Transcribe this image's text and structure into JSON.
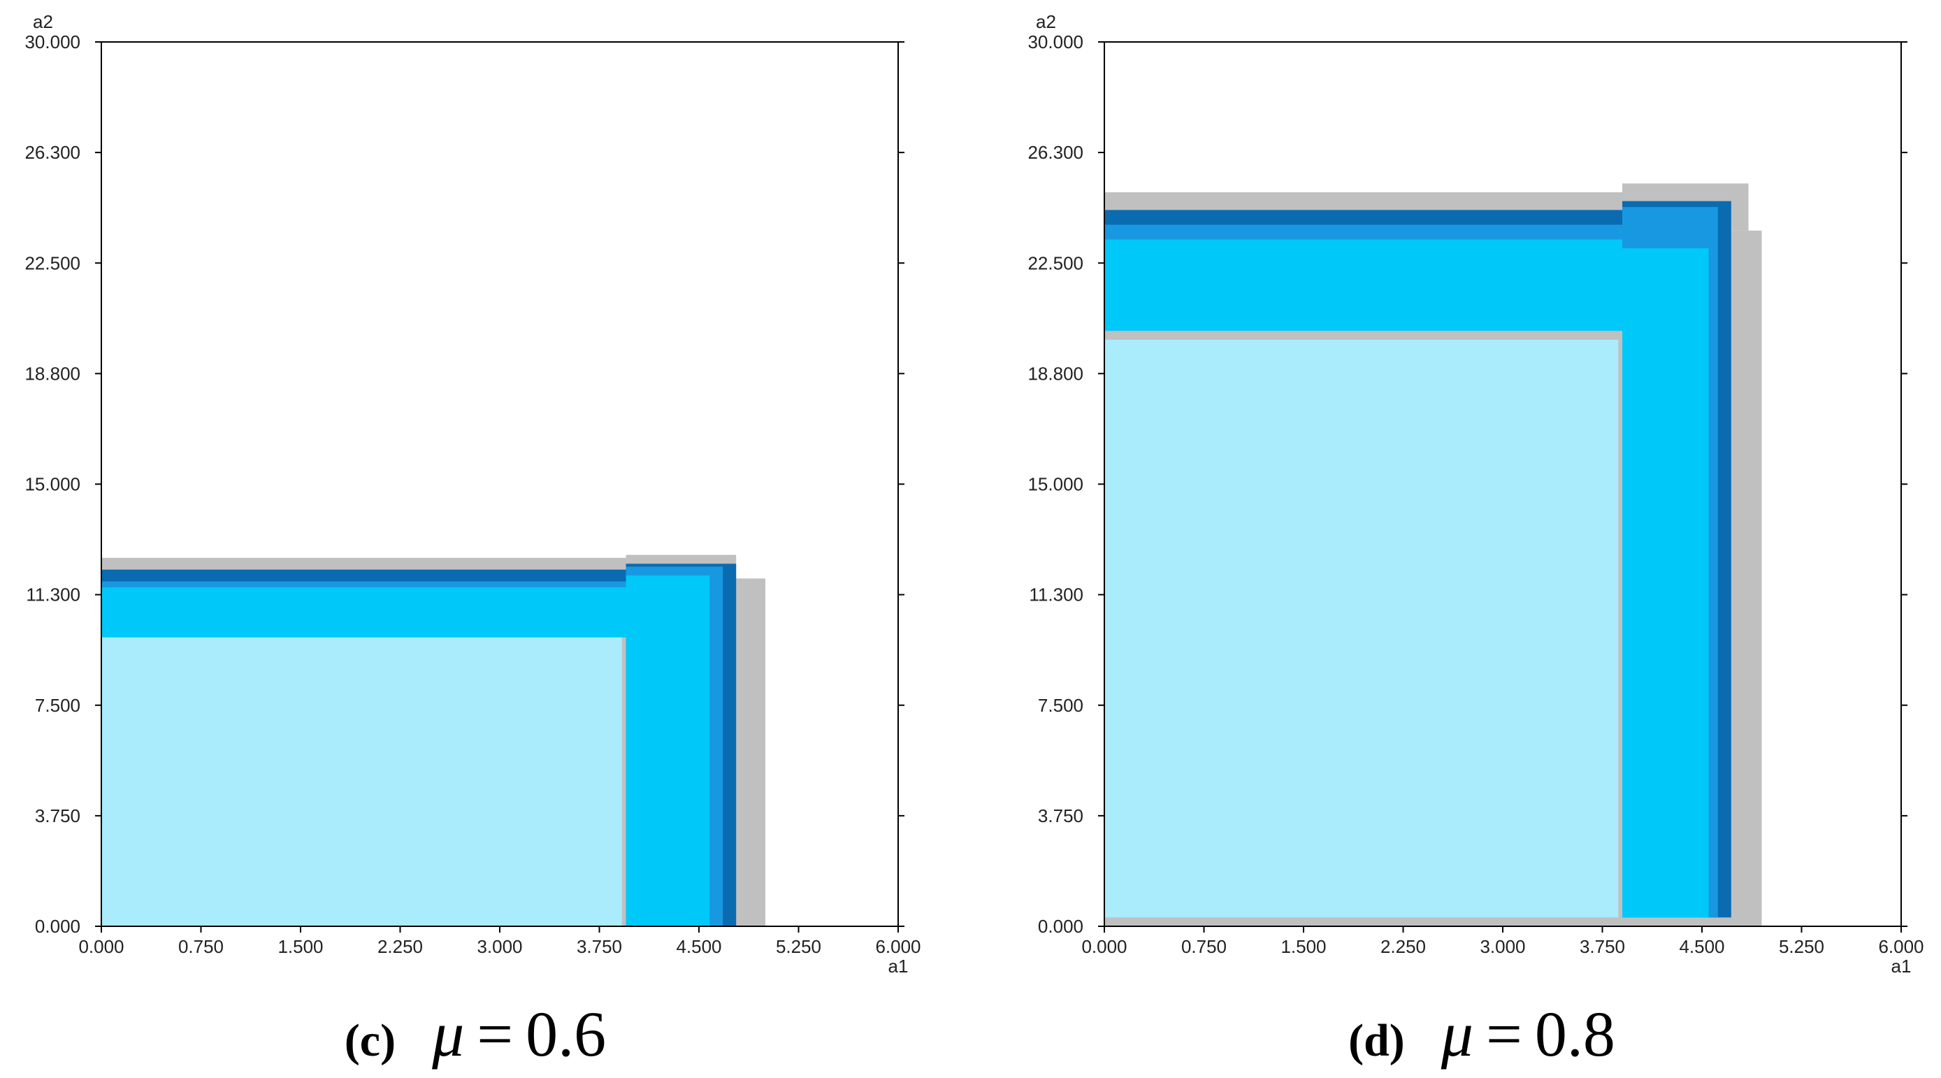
{
  "chart_data": [
    {
      "type": "heatmap",
      "panel_label": "(c)",
      "parameter_symbol": "μ",
      "equals": "=",
      "parameter_value": "0.6",
      "xlabel": "a1",
      "ylabel": "a2",
      "xlim": [
        0,
        6
      ],
      "ylim": [
        0,
        30
      ],
      "xticks": [
        "0.000",
        "0.750",
        "1.500",
        "2.250",
        "3.000",
        "3.750",
        "4.500",
        "5.250",
        "6.000"
      ],
      "yticks": [
        "0.000",
        "3.750",
        "7.500",
        "11.300",
        "15.000",
        "18.800",
        "22.500",
        "26.300",
        "30.000"
      ],
      "regions": [
        {
          "name": "gray-outer-bottom",
          "color": "#c0c0c0",
          "x": [
            0.0,
            5.0
          ],
          "y": [
            0.0,
            11.8
          ]
        },
        {
          "name": "gray-outer-top",
          "color": "#c0c0c0",
          "x": [
            0.0,
            3.95
          ],
          "y": [
            0.0,
            12.5
          ]
        },
        {
          "name": "gray-cap",
          "color": "#c0c0c0",
          "x": [
            3.95,
            4.78
          ],
          "y": [
            11.8,
            12.6
          ]
        },
        {
          "name": "dark-blue-top",
          "color": "#0a6bb0",
          "x": [
            0.0,
            3.95
          ],
          "y": [
            11.2,
            12.1
          ]
        },
        {
          "name": "mid-blue-top",
          "color": "#1898e0",
          "x": [
            0.0,
            3.95
          ],
          "y": [
            11.0,
            11.7
          ]
        },
        {
          "name": "dark-blue-right",
          "color": "#0a6bb0",
          "x": [
            3.95,
            4.78
          ],
          "y": [
            0.0,
            12.3
          ]
        },
        {
          "name": "mid-blue-right",
          "color": "#1898e0",
          "x": [
            3.95,
            4.68
          ],
          "y": [
            0.0,
            12.2
          ]
        },
        {
          "name": "cyan-top",
          "color": "#00c8f8",
          "x": [
            0.0,
            3.95
          ],
          "y": [
            9.8,
            11.5
          ]
        },
        {
          "name": "cyan-right",
          "color": "#00c8f8",
          "x": [
            3.95,
            4.58
          ],
          "y": [
            0.0,
            11.9
          ]
        },
        {
          "name": "light-blue-core",
          "color": "#aaebfc",
          "x": [
            0.0,
            3.92
          ],
          "y": [
            0.0,
            9.8
          ]
        }
      ]
    },
    {
      "type": "heatmap",
      "panel_label": "(d)",
      "parameter_symbol": "μ",
      "equals": "=",
      "parameter_value": "0.8",
      "xlabel": "a1",
      "ylabel": "a2",
      "xlim": [
        0,
        6
      ],
      "ylim": [
        0,
        30
      ],
      "xticks": [
        "0.000",
        "0.750",
        "1.500",
        "2.250",
        "3.000",
        "3.750",
        "4.500",
        "5.250",
        "6.000"
      ],
      "yticks": [
        "0.000",
        "3.750",
        "7.500",
        "11.300",
        "15.000",
        "18.800",
        "22.500",
        "26.300",
        "30.000"
      ],
      "regions": [
        {
          "name": "gray-outer-bottom",
          "color": "#c0c0c0",
          "x": [
            0.0,
            4.95
          ],
          "y": [
            0.0,
            23.6
          ]
        },
        {
          "name": "gray-outer-top",
          "color": "#c0c0c0",
          "x": [
            0.0,
            3.9
          ],
          "y": [
            0.0,
            24.9
          ]
        },
        {
          "name": "gray-cap",
          "color": "#c0c0c0",
          "x": [
            3.9,
            4.85
          ],
          "y": [
            23.6,
            25.2
          ]
        },
        {
          "name": "dark-blue-top",
          "color": "#0a6bb0",
          "x": [
            0.0,
            3.9
          ],
          "y": [
            23.2,
            24.3
          ]
        },
        {
          "name": "mid-blue-top",
          "color": "#1898e0",
          "x": [
            0.0,
            3.9
          ],
          "y": [
            22.9,
            23.8
          ]
        },
        {
          "name": "dark-blue-right",
          "color": "#0a6bb0",
          "x": [
            3.9,
            4.72
          ],
          "y": [
            0.3,
            24.6
          ]
        },
        {
          "name": "mid-blue-right",
          "color": "#1898e0",
          "x": [
            3.9,
            4.62
          ],
          "y": [
            0.3,
            24.4
          ]
        },
        {
          "name": "cyan-top",
          "color": "#00c8f8",
          "x": [
            0.0,
            3.9
          ],
          "y": [
            20.2,
            23.3
          ]
        },
        {
          "name": "cyan-right",
          "color": "#00c8f8",
          "x": [
            3.9,
            4.55
          ],
          "y": [
            0.3,
            23.0
          ]
        },
        {
          "name": "light-blue-core",
          "color": "#aaebfc",
          "x": [
            0.0,
            3.87
          ],
          "y": [
            0.3,
            19.9
          ]
        }
      ]
    }
  ]
}
